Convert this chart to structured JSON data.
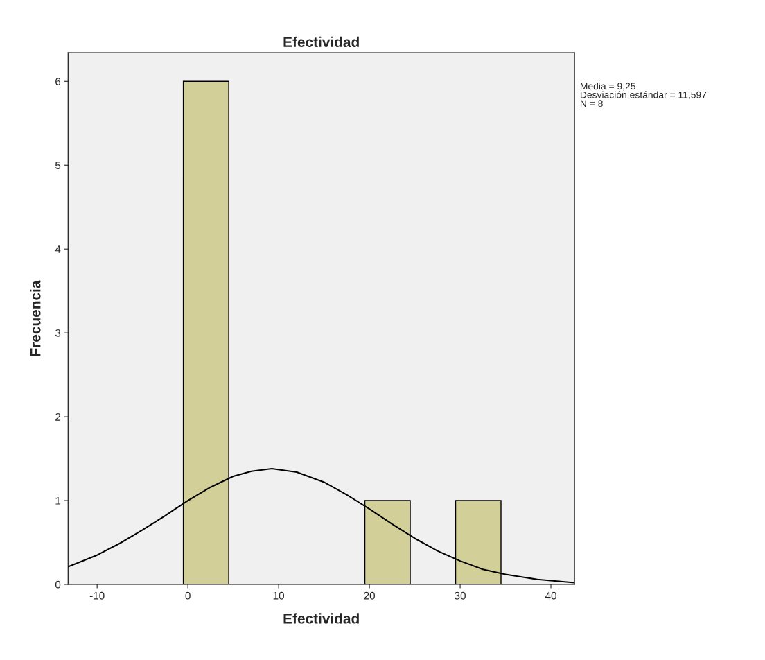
{
  "chart_data": {
    "type": "histogram",
    "title": "Efectividad",
    "xlabel": "Efectividad",
    "ylabel": "Frecuencia",
    "series": [
      {
        "color": "#d3cf98",
        "bins": [
          -0.5,
          4.5,
          9.5,
          14.5,
          19.5,
          24.5,
          29.5,
          34.5
        ],
        "values": [
          6,
          0,
          0,
          0,
          1,
          0,
          1
        ]
      },
      {
        "type": "line",
        "color": "#000000",
        "x": [
          -13.2,
          -10,
          -7.5,
          -5,
          -2.5,
          0,
          2.5,
          5,
          7,
          9.25,
          12,
          15,
          17.5,
          20,
          22.5,
          25,
          27.5,
          30,
          32.5,
          35,
          38.5,
          42.6
        ],
        "values": [
          0.21,
          0.35,
          0.49,
          0.65,
          0.82,
          1.0,
          1.16,
          1.29,
          1.35,
          1.38,
          1.34,
          1.22,
          1.07,
          0.9,
          0.72,
          0.55,
          0.4,
          0.28,
          0.18,
          0.12,
          0.06,
          0.02
        ]
      }
    ],
    "xlim": [
      -13.2,
      42.6
    ],
    "xticks": [
      -10,
      0,
      10,
      20,
      30,
      40
    ],
    "ylim": [
      0,
      6.34
    ],
    "yticks": [
      0,
      1,
      2,
      3,
      4,
      5,
      6
    ],
    "grid": false,
    "legend": false,
    "annotations": [
      "Media = 9,25\nDesviación estándar = 11,597\nN = 8"
    ]
  }
}
